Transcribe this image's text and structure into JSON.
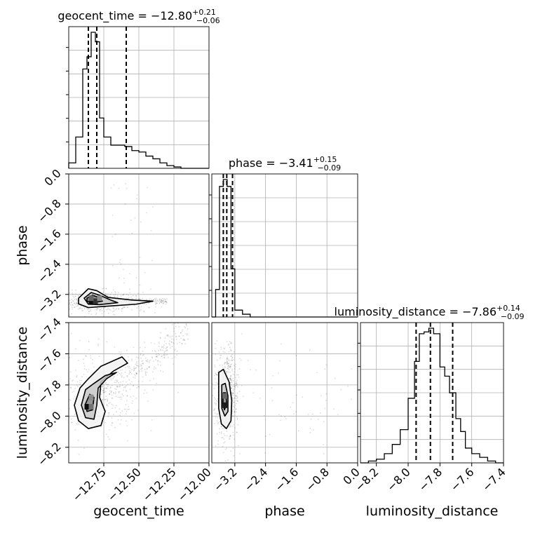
{
  "chart_data": {
    "type": "corner",
    "grid": true,
    "parameters": [
      {
        "name": "geocent_time",
        "xlabel": "geocent_time",
        "title": "geocent_time = −12.80",
        "title_sup": "+0.21",
        "title_sub": "−0.06",
        "median": -12.8,
        "quantiles": [
          -12.86,
          -12.8,
          -12.59
        ],
        "range": [
          -13.0,
          -12.0
        ],
        "ticks": [
          -12.75,
          -12.5,
          -12.25,
          -12.0
        ],
        "tick_labels": [
          "−12.75",
          "−12.50",
          "−12.25",
          "−12.00"
        ],
        "hist": {
          "edges": [
            -13.0,
            -12.95,
            -12.9,
            -12.87,
            -12.84,
            -12.81,
            -12.78,
            -12.75,
            -12.7,
            -12.65,
            -12.6,
            -12.55,
            -12.5,
            -12.45,
            -12.4,
            -12.35,
            -12.3,
            -12.25,
            -12.2,
            -12.15,
            -12.0
          ],
          "counts": [
            0.04,
            0.23,
            0.73,
            0.82,
            1.0,
            0.93,
            0.37,
            0.23,
            0.17,
            0.17,
            0.16,
            0.13,
            0.12,
            0.09,
            0.07,
            0.04,
            0.02,
            0.01,
            0.0,
            0.0
          ]
        }
      },
      {
        "name": "phase",
        "ylabel": "phase",
        "xlabel": "phase",
        "title": "phase = −3.41",
        "title_sup": "+0.15",
        "title_sub": "−0.09",
        "median": -3.41,
        "quantiles": [
          -3.5,
          -3.41,
          -3.26
        ],
        "range": [
          -3.8,
          0.0
        ],
        "ticks": [
          -3.2,
          -2.4,
          -1.6,
          -0.8,
          0.0
        ],
        "tick_labels": [
          "−3.2",
          "−2.4",
          "−1.6",
          "−0.8",
          "0.0"
        ],
        "hist": {
          "edges": [
            -3.8,
            -3.7,
            -3.6,
            -3.5,
            -3.4,
            -3.3,
            -3.2,
            -3.0,
            -2.8,
            -2.5,
            -2.0,
            0.0
          ],
          "counts": [
            0.0,
            0.2,
            0.95,
            1.0,
            0.95,
            0.35,
            0.05,
            0.02,
            0.0,
            0.0,
            0.0
          ]
        }
      },
      {
        "name": "luminosity_distance",
        "ylabel": "luminosity_distance",
        "xlabel": "luminosity_distance",
        "title": "luminosity_distance = −7.86",
        "title_sup": "+0.14",
        "title_sub": "−0.09",
        "median": -7.86,
        "quantiles": [
          -7.95,
          -7.86,
          -7.72
        ],
        "range": [
          -8.3,
          -7.4
        ],
        "ticks": [
          -8.2,
          -8.0,
          -7.8,
          -7.6,
          -7.4
        ],
        "tick_labels": [
          "−8.2",
          "−8.0",
          "−7.8",
          "−7.6",
          "−7.4"
        ],
        "hist": {
          "edges": [
            -8.3,
            -8.25,
            -8.2,
            -8.15,
            -8.1,
            -8.05,
            -8.0,
            -7.96,
            -7.93,
            -7.9,
            -7.87,
            -7.84,
            -7.8,
            -7.77,
            -7.74,
            -7.7,
            -7.67,
            -7.64,
            -7.6,
            -7.55,
            -7.5,
            -7.45,
            -7.4
          ],
          "counts": [
            0.0,
            0.01,
            0.02,
            0.05,
            0.1,
            0.18,
            0.35,
            0.55,
            0.7,
            0.71,
            0.73,
            0.7,
            0.52,
            0.47,
            0.38,
            0.24,
            0.17,
            0.08,
            0.05,
            0.03,
            0.01,
            0.0
          ]
        }
      }
    ],
    "pairs": [
      {
        "x": "geocent_time",
        "y": "phase",
        "x_range": [
          -13.0,
          -12.0
        ],
        "y_range": [
          -3.8,
          0.0
        ],
        "y_ticks": [
          0.0,
          -0.8,
          -1.6,
          -2.4,
          -3.2
        ],
        "y_tick_labels": [
          "0.0",
          "−0.8",
          "−1.6",
          "−2.4",
          "−3.2"
        ],
        "contours": [
          [
            [
              -12.93,
              -3.3
            ],
            [
              -12.86,
              -3.05
            ],
            [
              -12.8,
              -3.1
            ],
            [
              -12.72,
              -3.28
            ],
            [
              -12.55,
              -3.35
            ],
            [
              -12.4,
              -3.38
            ],
            [
              -12.52,
              -3.46
            ],
            [
              -12.75,
              -3.52
            ],
            [
              -12.86,
              -3.55
            ],
            [
              -12.93,
              -3.45
            ]
          ],
          [
            [
              -12.89,
              -3.3
            ],
            [
              -12.84,
              -3.15
            ],
            [
              -12.78,
              -3.22
            ],
            [
              -12.7,
              -3.35
            ],
            [
              -12.65,
              -3.42
            ],
            [
              -12.78,
              -3.47
            ],
            [
              -12.86,
              -3.46
            ]
          ],
          [
            [
              -12.87,
              -3.3
            ],
            [
              -12.83,
              -3.22
            ],
            [
              -12.79,
              -3.28
            ],
            [
              -12.76,
              -3.38
            ],
            [
              -12.83,
              -3.42
            ],
            [
              -12.87,
              -3.38
            ]
          ]
        ],
        "density_cells": [
          {
            "x": -12.84,
            "y": -3.38,
            "level": 0.95
          },
          {
            "x": -12.81,
            "y": -3.38,
            "level": 0.8
          },
          {
            "x": -12.84,
            "y": -3.3,
            "level": 0.6
          },
          {
            "x": -12.78,
            "y": -3.3,
            "level": 0.45
          }
        ]
      },
      {
        "x": "geocent_time",
        "y": "luminosity_distance",
        "x_range": [
          -13.0,
          -12.0
        ],
        "y_range": [
          -8.3,
          -7.4
        ],
        "y_ticks": [
          -7.4,
          -7.6,
          -7.8,
          -8.0,
          -8.2
        ],
        "y_tick_labels": [
          "−7.4",
          "−7.6",
          "−7.8",
          "−8.0",
          "−8.2"
        ],
        "contours": [
          [
            [
              -12.96,
              -7.93
            ],
            [
              -12.92,
              -7.82
            ],
            [
              -12.86,
              -7.76
            ],
            [
              -12.77,
              -7.68
            ],
            [
              -12.62,
              -7.62
            ],
            [
              -12.58,
              -7.66
            ],
            [
              -12.68,
              -7.71
            ],
            [
              -12.77,
              -7.78
            ],
            [
              -12.78,
              -7.88
            ],
            [
              -12.74,
              -7.97
            ],
            [
              -12.77,
              -8.06
            ],
            [
              -12.86,
              -8.08
            ],
            [
              -12.93,
              -8.03
            ]
          ],
          [
            [
              -12.91,
              -7.93
            ],
            [
              -12.88,
              -7.83
            ],
            [
              -12.82,
              -7.79
            ],
            [
              -12.74,
              -7.74
            ],
            [
              -12.66,
              -7.72
            ],
            [
              -12.73,
              -7.76
            ],
            [
              -12.79,
              -7.82
            ],
            [
              -12.8,
              -7.93
            ],
            [
              -12.82,
              -8.02
            ],
            [
              -12.88,
              -8.01
            ]
          ],
          [
            [
              -12.88,
              -7.92
            ],
            [
              -12.85,
              -7.86
            ],
            [
              -12.82,
              -7.88
            ],
            [
              -12.83,
              -7.96
            ],
            [
              -12.87,
              -7.97
            ]
          ]
        ],
        "density_cells": [
          {
            "x": -12.87,
            "y": -7.94,
            "level": 0.95
          },
          {
            "x": -12.84,
            "y": -7.94,
            "level": 0.55
          },
          {
            "x": -12.84,
            "y": -7.88,
            "level": 0.45
          }
        ]
      },
      {
        "x": "phase",
        "y": "luminosity_distance",
        "x_range": [
          -3.8,
          0.0
        ],
        "y_range": [
          -8.3,
          -7.4
        ],
        "contours": [
          [
            [
              -3.62,
              -7.72
            ],
            [
              -3.5,
              -7.7
            ],
            [
              -3.35,
              -7.78
            ],
            [
              -3.28,
              -7.9
            ],
            [
              -3.3,
              -8.03
            ],
            [
              -3.42,
              -8.08
            ],
            [
              -3.55,
              -8.05
            ],
            [
              -3.62,
              -7.95
            ]
          ],
          [
            [
              -3.54,
              -7.8
            ],
            [
              -3.45,
              -7.79
            ],
            [
              -3.38,
              -7.87
            ],
            [
              -3.38,
              -7.97
            ],
            [
              -3.46,
              -8.0
            ],
            [
              -3.54,
              -7.95
            ]
          ],
          [
            [
              -3.5,
              -7.85
            ],
            [
              -3.44,
              -7.85
            ],
            [
              -3.41,
              -7.92
            ],
            [
              -3.47,
              -7.96
            ],
            [
              -3.51,
              -7.92
            ]
          ]
        ],
        "density_cells": [
          {
            "x": -3.46,
            "y": -7.93,
            "level": 0.9
          },
          {
            "x": -3.46,
            "y": -7.87,
            "level": 0.6
          }
        ]
      }
    ]
  }
}
